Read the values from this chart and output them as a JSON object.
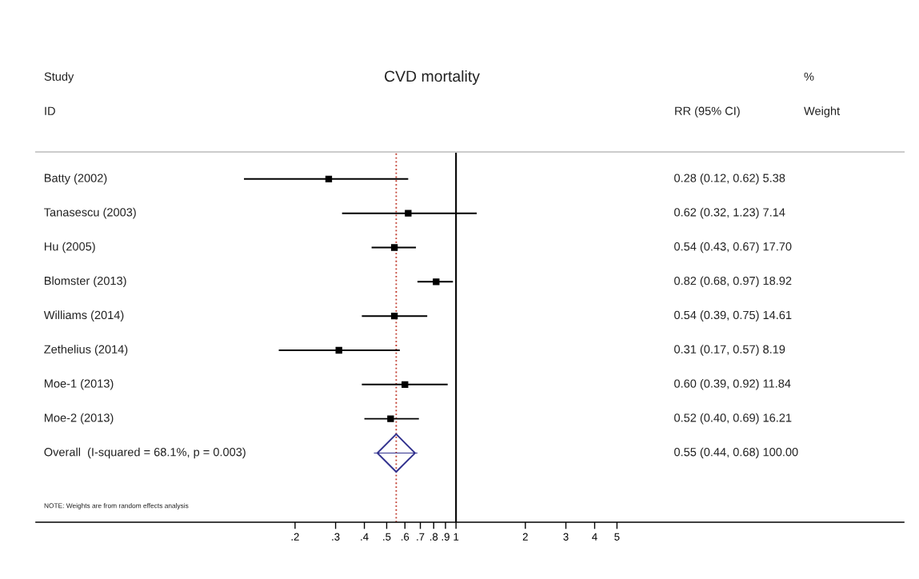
{
  "chart_data": {
    "type": "scatter",
    "orientation": "horizontal",
    "title": "CVD mortality",
    "annotations": [
      "Study",
      "ID",
      "RR (95% CI)",
      "%",
      "Weight",
      "NOTE: Weights are from random effects analysis",
      "0.28 (0.12, 0.62) 5.38",
      "0.62 (0.32, 1.23) 7.14",
      "0.54 (0.43, 0.67) 17.70",
      "0.82 (0.68, 0.97) 18.92",
      "0.54 (0.39, 0.75) 14.61",
      "0.31 (0.17, 0.57) 8.19",
      "0.60 (0.39, 0.92) 11.84",
      "0.52 (0.40, 0.69) 16.21",
      "0.55 (0.44, 0.68) 100.00"
    ],
    "categories": [
      "Batty (2002)",
      "Tanasescu (2003)",
      "Hu (2005)",
      "Blomster (2013)",
      "Williams (2014)",
      "Zethelius (2014)",
      "Moe-1 (2013)",
      "Moe-2 (2013)",
      "Overall  (I-squared = 68.1%, p = 0.003)"
    ],
    "series": [
      {
        "color": "#000000",
        "marker": "square",
        "values": [
          0.28,
          0.62,
          0.54,
          0.82,
          0.54,
          0.31,
          0.6,
          0.52,
          null
        ],
        "errors": [
          [
            0.12,
            0.62
          ],
          [
            0.32,
            1.23
          ],
          [
            0.43,
            0.67
          ],
          [
            0.68,
            0.97
          ],
          [
            0.39,
            0.75
          ],
          [
            0.17,
            0.57
          ],
          [
            0.39,
            0.92
          ],
          [
            0.4,
            0.69
          ],
          null
        ]
      },
      {
        "color": "#33338f",
        "marker": "diamond",
        "values": [
          null,
          null,
          null,
          null,
          null,
          null,
          null,
          null,
          0.55
        ],
        "errors": [
          null,
          null,
          null,
          null,
          null,
          null,
          null,
          null,
          [
            0.44,
            0.68
          ]
        ]
      }
    ],
    "log": "x",
    "xlim": [
      0.015,
      88
    ],
    "xticks": [
      {
        "value": 0.2,
        "label": ".2"
      },
      {
        "value": 0.3,
        "label": ".3"
      },
      {
        "value": 0.4,
        "label": ".4"
      },
      {
        "value": 0.5,
        "label": ".5"
      },
      {
        "value": 0.6,
        "label": ".6"
      },
      {
        "value": 0.7,
        "label": ".7"
      },
      {
        "value": 0.8,
        "label": ".8"
      },
      {
        "value": 0.9,
        "label": ".9"
      },
      1,
      2,
      3,
      4,
      5
    ],
    "ref_lines": [
      {
        "axis": "x",
        "value": 1,
        "color": "#000000",
        "line_style": "solid"
      },
      {
        "axis": "x",
        "value": 0.55,
        "color": "#c0392b",
        "line_style": "dotted"
      }
    ]
  }
}
